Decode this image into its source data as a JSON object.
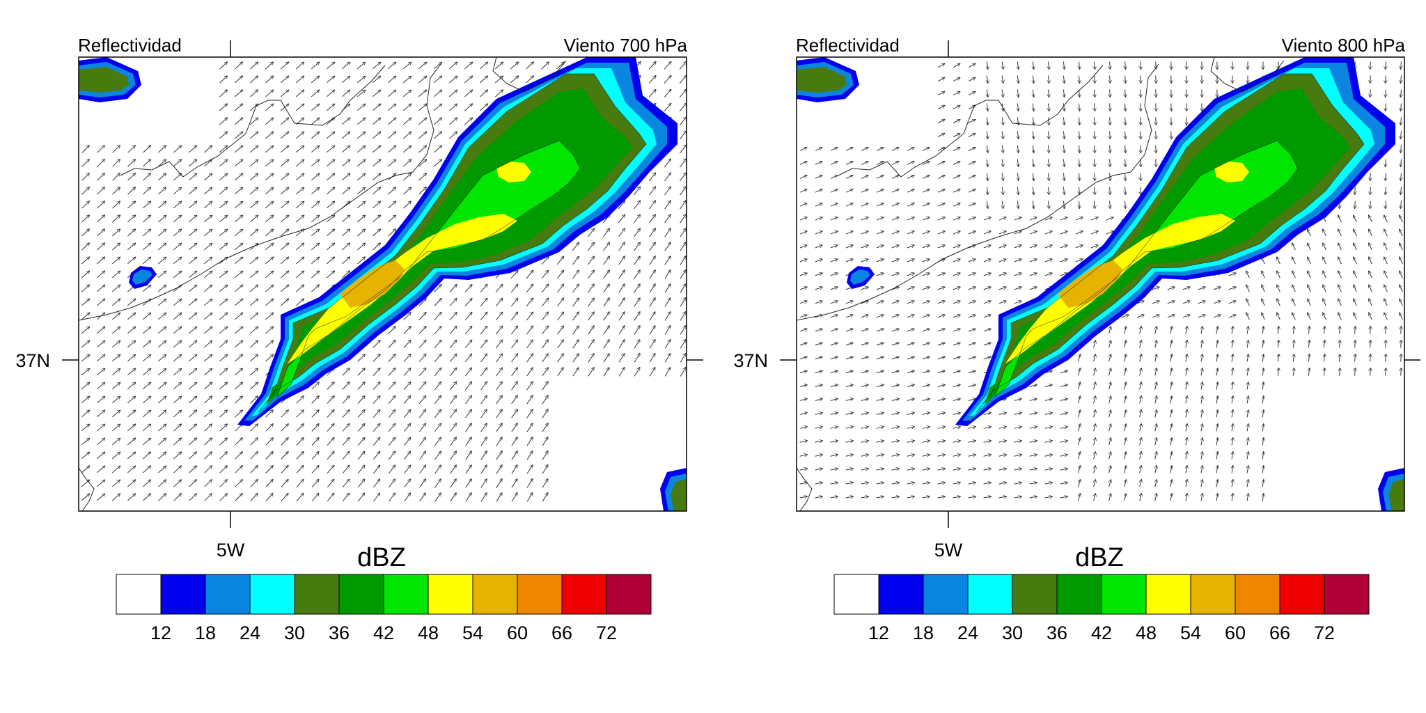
{
  "panels": [
    {
      "id": "p700",
      "left_title": "Reflectividad",
      "right_title": "Viento 700 hPa",
      "x_tick_label": "5W",
      "y_tick_label": "37N",
      "colorbar_title": "dBZ",
      "wind_regime": "southwesterly",
      "wind_direction_deg": 45
    },
    {
      "id": "p800",
      "left_title": "Reflectividad",
      "right_title": "Viento 800 hPa",
      "x_tick_label": "5W",
      "y_tick_label": "37N",
      "colorbar_title": "dBZ",
      "wind_regime": "convergent",
      "wind_direction_deg": 60
    }
  ],
  "colorbar": {
    "levels": [
      "12",
      "18",
      "24",
      "30",
      "36",
      "42",
      "48",
      "54",
      "60",
      "66",
      "72"
    ],
    "colors": [
      "#ffffff",
      "#0000ee",
      "#0a86e0",
      "#00ffff",
      "#477a0f",
      "#009a00",
      "#00e600",
      "#ffff00",
      "#e6b400",
      "#ee8600",
      "#ee0000",
      "#b00038"
    ]
  },
  "reflectivity_palette": {
    "dbz12": "#0000ee",
    "dbz18": "#0a86e0",
    "dbz24": "#00ffff",
    "dbz30": "#477a0f",
    "dbz36": "#009a00",
    "dbz42": "#00e600",
    "dbz48": "#ffff00",
    "dbz54": "#e6b400"
  }
}
